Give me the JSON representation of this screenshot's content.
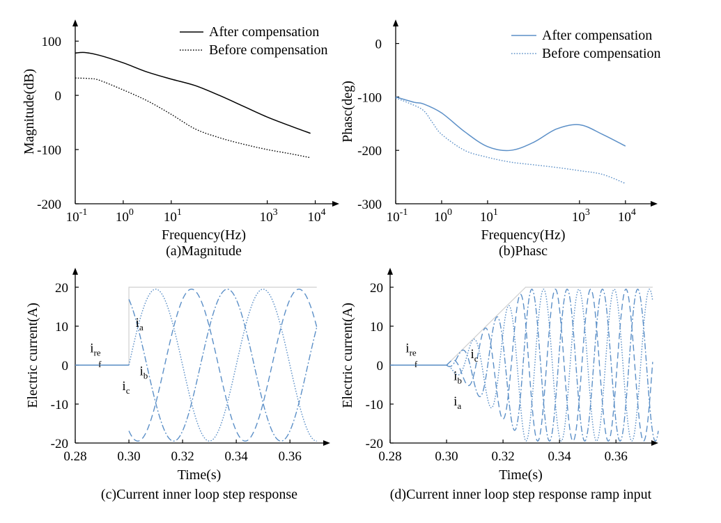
{
  "chart_data": [
    {
      "id": "a",
      "type": "line",
      "title": "(a)Magnitude",
      "xlabel": "Frequency(Hz)",
      "ylabel": "Magnitude(dB)",
      "xscale": "log",
      "xlim": [
        -1,
        4.5
      ],
      "ylim": [
        -200,
        140
      ],
      "xticks": [
        {
          "value": -1,
          "base": "10",
          "exp": "-1"
        },
        {
          "value": 0,
          "base": "10",
          "exp": "0"
        },
        {
          "value": 1,
          "base": "10",
          "exp": "1"
        },
        {
          "value": 3,
          "base": "10",
          "exp": "3"
        },
        {
          "value": 4,
          "base": "10",
          "exp": "4"
        }
      ],
      "yticks": [
        {
          "value": 100,
          "label": "100"
        },
        {
          "value": 0,
          "label": "0"
        },
        {
          "value": -100,
          "label": "-100"
        },
        {
          "value": -200,
          "label": "-200"
        }
      ],
      "legend": {
        "position": "top-right"
      },
      "series": [
        {
          "name": "After compensation",
          "style": "solid",
          "color": "#000000",
          "x": [
            -1,
            -0.8,
            -0.5,
            0,
            0.5,
            1,
            1.5,
            2,
            2.5,
            3,
            3.5,
            3.9
          ],
          "y": [
            78,
            79,
            74,
            60,
            43,
            30,
            18,
            0,
            -20,
            -40,
            -57,
            -70
          ]
        },
        {
          "name": "Before compensation",
          "style": "dotted",
          "color": "#000000",
          "x": [
            -1,
            -0.7,
            -0.5,
            0,
            0.5,
            1,
            1.5,
            2,
            2.5,
            3,
            3.5,
            3.9
          ],
          "y": [
            32,
            31,
            28,
            10,
            -10,
            -35,
            -62,
            -78,
            -90,
            -100,
            -108,
            -115
          ]
        }
      ]
    },
    {
      "id": "b",
      "type": "line",
      "title": "(b)Phasc",
      "xlabel": "Frequency(Hz)",
      "ylabel": "Phasc(deg)",
      "xscale": "log",
      "xlim": [
        -1,
        4.7
      ],
      "ylim": [
        -300,
        45
      ],
      "xticks": [
        {
          "value": -1,
          "base": "10",
          "exp": "-1"
        },
        {
          "value": 0,
          "base": "10",
          "exp": "0"
        },
        {
          "value": 1,
          "base": "10",
          "exp": "1"
        },
        {
          "value": 3,
          "base": "10",
          "exp": "3"
        },
        {
          "value": 4,
          "base": "10",
          "exp": "4"
        }
      ],
      "yticks": [
        {
          "value": 0,
          "label": "0"
        },
        {
          "value": -100,
          "label": "-100"
        },
        {
          "value": -200,
          "label": "-200"
        },
        {
          "value": -300,
          "label": "-300"
        }
      ],
      "legend": {
        "position": "top-right"
      },
      "series": [
        {
          "name": "After compensation",
          "style": "solid",
          "color": "#5b8fc7",
          "x": [
            -1,
            -0.6,
            -0.4,
            0,
            0.5,
            1,
            1.5,
            2,
            2.5,
            3,
            3.5,
            4
          ],
          "y": [
            -100,
            -110,
            -113,
            -130,
            -165,
            -193,
            -200,
            -185,
            -160,
            -152,
            -170,
            -192
          ]
        },
        {
          "name": "Before compensation",
          "style": "dotted",
          "color": "#5b8fc7",
          "x": [
            -1,
            -0.7,
            -0.4,
            -0.2,
            0,
            0.5,
            1,
            1.5,
            2,
            2.5,
            3,
            3.5,
            4
          ],
          "y": [
            -102,
            -112,
            -125,
            -148,
            -170,
            -200,
            -213,
            -222,
            -227,
            -232,
            -238,
            -245,
            -262
          ]
        }
      ]
    },
    {
      "id": "c",
      "type": "line",
      "title": "(c)Current inner loop step response",
      "xlabel": "Time(s)",
      "ylabel": "Electric current(A)",
      "xlim": [
        0.28,
        0.375
      ],
      "ylim": [
        -20,
        25
      ],
      "xticks": [
        {
          "value": 0.28,
          "label": "0.28"
        },
        {
          "value": 0.3,
          "label": "0.30"
        },
        {
          "value": 0.32,
          "label": "0.32"
        },
        {
          "value": 0.34,
          "label": "0.34"
        },
        {
          "value": 0.36,
          "label": "0.36"
        }
      ],
      "yticks": [
        {
          "value": 20,
          "label": "20"
        },
        {
          "value": 10,
          "label": "10"
        },
        {
          "value": 0,
          "label": "0"
        },
        {
          "value": -10,
          "label": "-10"
        },
        {
          "value": -20,
          "label": "-20"
        }
      ],
      "reference": {
        "name": "i_ref",
        "x": [
          0.28,
          0.3,
          0.3,
          0.37
        ],
        "y": [
          0,
          0,
          20,
          20
        ]
      },
      "series": [
        {
          "name": "i_a",
          "style": "dotted",
          "color": "#5b8fc7",
          "t0": 0.3,
          "t1": 0.37,
          "amplitude": 19.5,
          "period": 0.04,
          "phase_deg": 0
        },
        {
          "name": "i_b",
          "style": "dashed",
          "color": "#5b8fc7",
          "t0": 0.3,
          "t1": 0.37,
          "amplitude": 19.5,
          "period": 0.04,
          "phase_deg": -120
        },
        {
          "name": "i_c",
          "style": "dashdot",
          "color": "#5b8fc7",
          "t0": 0.3,
          "t1": 0.37,
          "amplitude": 19.5,
          "period": 0.04,
          "phase_deg": 120
        }
      ],
      "annotations": [
        {
          "base": "i",
          "sub": "re",
          "x": 0.2855,
          "y": 3.3
        },
        {
          "base": "",
          "sub": "f",
          "x": 0.2886,
          "y": -0.5
        },
        {
          "base": "i",
          "sub": "a",
          "x": 0.3025,
          "y": 9.8
        },
        {
          "base": "i",
          "sub": "b",
          "x": 0.304,
          "y": -2.6
        },
        {
          "base": "i",
          "sub": "c",
          "x": 0.2975,
          "y": -6.4
        }
      ]
    },
    {
      "id": "d",
      "type": "line",
      "title": "(d)Current inner loop step response ramp input",
      "xlabel": "Time(s)",
      "ylabel": "Electric current(A)",
      "xlim": [
        0.28,
        0.375
      ],
      "ylim": [
        -20,
        25
      ],
      "xticks": [
        {
          "value": 0.28,
          "label": "0.28"
        },
        {
          "value": 0.3,
          "label": "0.30"
        },
        {
          "value": 0.32,
          "label": "0.32"
        },
        {
          "value": 0.34,
          "label": "0.34"
        },
        {
          "value": 0.36,
          "label": "0.36"
        }
      ],
      "yticks": [
        {
          "value": 20,
          "label": "20"
        },
        {
          "value": 10,
          "label": "10"
        },
        {
          "value": 0,
          "label": "0"
        },
        {
          "value": -10,
          "label": "-10"
        },
        {
          "value": -20,
          "label": "-20"
        }
      ],
      "reference": {
        "name": "i_ref",
        "x": [
          0.28,
          0.3,
          0.328,
          0.373
        ],
        "y": [
          0,
          0,
          20,
          20
        ]
      },
      "series": [
        {
          "name": "i_a",
          "style": "dotted",
          "color": "#5b8fc7",
          "t0": 0.3,
          "t_ramp": 0.328,
          "t1": 0.373,
          "amplitude": 19.5,
          "period": 0.0125,
          "phase_deg": 180
        },
        {
          "name": "i_b",
          "style": "dashed",
          "color": "#5b8fc7",
          "t0": 0.3,
          "t_ramp": 0.328,
          "t1": 0.373,
          "amplitude": 19.5,
          "period": 0.0125,
          "phase_deg": 60
        },
        {
          "name": "i_c",
          "style": "dashdot",
          "color": "#5b8fc7",
          "t0": 0.3,
          "t_ramp": 0.328,
          "t1": 0.375,
          "amplitude": 19.5,
          "period": 0.0125,
          "phase_deg": -60
        }
      ],
      "annotations": [
        {
          "base": "i",
          "sub": "re",
          "x": 0.2855,
          "y": 3.3
        },
        {
          "base": "",
          "sub": "f",
          "x": 0.2886,
          "y": -0.5
        },
        {
          "base": "i",
          "sub": "c",
          "x": 0.3085,
          "y": 1.8
        },
        {
          "base": "i",
          "sub": "b",
          "x": 0.3025,
          "y": -3.8
        },
        {
          "base": "i",
          "sub": "a",
          "x": 0.3025,
          "y": -10.4
        }
      ]
    }
  ]
}
